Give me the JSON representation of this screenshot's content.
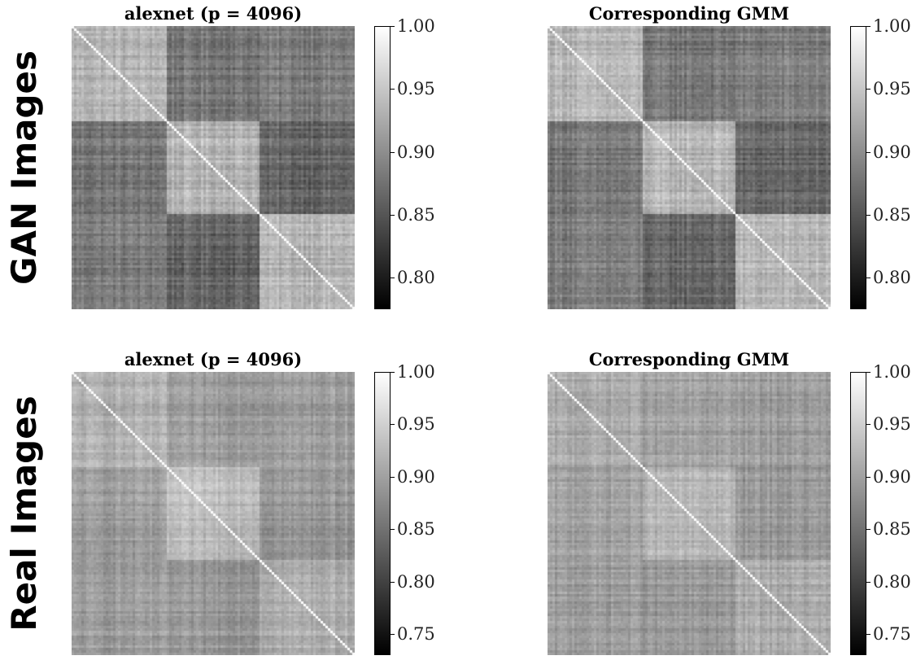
{
  "row_labels": {
    "top": "GAN Images",
    "bottom": "Real Images"
  },
  "panels": [
    {
      "title": "alexnet (p = 4096)",
      "row": "top",
      "col": "left"
    },
    {
      "title": "Corresponding GMM",
      "row": "top",
      "col": "right"
    },
    {
      "title": "alexnet (p = 4096)",
      "row": "bottom",
      "col": "left"
    },
    {
      "title": "Corresponding GMM",
      "row": "bottom",
      "col": "right"
    }
  ],
  "chart_data": [
    {
      "type": "heatmap",
      "title": "alexnet (p = 4096)",
      "colormap": "gray",
      "n_classes": 3,
      "block_boundaries_fraction": [
        0.333,
        0.667
      ],
      "diagonal_value": 1.0,
      "block_mean_values": [
        [
          0.935,
          0.88,
          0.885
        ],
        [
          0.88,
          0.935,
          0.865
        ],
        [
          0.885,
          0.865,
          0.935
        ]
      ],
      "colorbar": {
        "vmin": 0.775,
        "vmax": 1.0,
        "ticks": [
          "0.80",
          "0.85",
          "0.90",
          "0.95",
          "1.00"
        ]
      }
    },
    {
      "type": "heatmap",
      "title": "Corresponding GMM",
      "colormap": "gray",
      "n_classes": 3,
      "block_boundaries_fraction": [
        0.333,
        0.667
      ],
      "diagonal_value": 1.0,
      "block_mean_values": [
        [
          0.935,
          0.88,
          0.885
        ],
        [
          0.88,
          0.935,
          0.865
        ],
        [
          0.885,
          0.865,
          0.935
        ]
      ],
      "colorbar": {
        "vmin": 0.775,
        "vmax": 1.0,
        "ticks": [
          "0.80",
          "0.85",
          "0.90",
          "0.95",
          "1.00"
        ]
      }
    },
    {
      "type": "heatmap",
      "title": "alexnet (p = 4096)",
      "colormap": "gray",
      "n_classes": 3,
      "block_boundaries_fraction": [
        0.333,
        0.667
      ],
      "diagonal_value": 1.0,
      "block_mean_values": [
        [
          0.915,
          0.895,
          0.895
        ],
        [
          0.895,
          0.93,
          0.89
        ],
        [
          0.895,
          0.89,
          0.915
        ]
      ],
      "colorbar": {
        "vmin": 0.73,
        "vmax": 1.0,
        "ticks": [
          "0.75",
          "0.80",
          "0.85",
          "0.90",
          "0.95",
          "1.00"
        ]
      }
    },
    {
      "type": "heatmap",
      "title": "Corresponding GMM",
      "colormap": "gray",
      "n_classes": 3,
      "block_boundaries_fraction": [
        0.333,
        0.667
      ],
      "diagonal_value": 1.0,
      "block_mean_values": [
        [
          0.91,
          0.9,
          0.895
        ],
        [
          0.9,
          0.92,
          0.89
        ],
        [
          0.895,
          0.89,
          0.91
        ]
      ],
      "colorbar": {
        "vmin": 0.73,
        "vmax": 1.0,
        "ticks": [
          "0.75",
          "0.80",
          "0.85",
          "0.90",
          "0.95",
          "1.00"
        ]
      }
    }
  ]
}
